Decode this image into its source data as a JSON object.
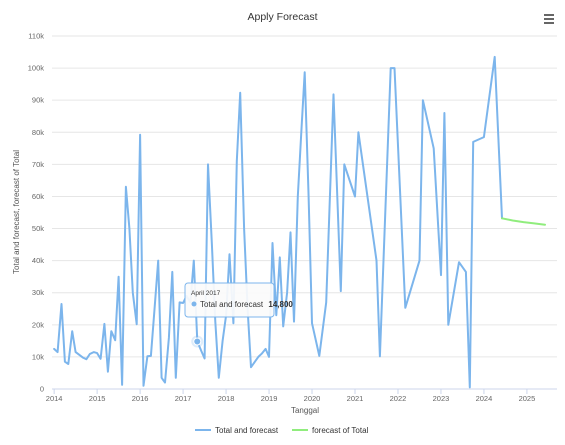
{
  "chart_data": {
    "type": "line",
    "title": "Apply Forecast",
    "xlabel": "Tanggal",
    "ylabel": "Total and forecast, forecast of Total",
    "xlim": [
      2013.95,
      2025.7
    ],
    "ylim": [
      0,
      110000
    ],
    "y_ticks": [
      0,
      10000,
      20000,
      30000,
      40000,
      50000,
      60000,
      70000,
      80000,
      90000,
      100000,
      110000
    ],
    "y_tick_labels": [
      "0",
      "10k",
      "20k",
      "30k",
      "40k",
      "50k",
      "60k",
      "70k",
      "80k",
      "90k",
      "100k",
      "110k"
    ],
    "x_ticks": [
      2014,
      2015,
      2016,
      2017,
      2018,
      2019,
      2020,
      2021,
      2022,
      2023,
      2024,
      2025
    ],
    "x_tick_labels": [
      "2014",
      "2015",
      "2016",
      "2017",
      "2018",
      "2019",
      "2020",
      "2021",
      "2022",
      "2023",
      "2024",
      "2025"
    ],
    "grid": "horizontal",
    "legend_position": "bottom-center",
    "series": [
      {
        "name": "Total and forecast",
        "color": "#7cb5ec",
        "points": [
          [
            2014.0,
            12500
          ],
          [
            2014.08,
            11500
          ],
          [
            2014.17,
            26500
          ],
          [
            2014.25,
            8500
          ],
          [
            2014.33,
            7800
          ],
          [
            2014.42,
            18000
          ],
          [
            2014.5,
            11500
          ],
          [
            2014.58,
            10700
          ],
          [
            2014.67,
            9800
          ],
          [
            2014.75,
            9300
          ],
          [
            2014.83,
            10900
          ],
          [
            2014.92,
            11500
          ],
          [
            2015.0,
            11200
          ],
          [
            2015.08,
            9400
          ],
          [
            2015.17,
            20300
          ],
          [
            2015.25,
            5400
          ],
          [
            2015.33,
            18000
          ],
          [
            2015.42,
            15200
          ],
          [
            2015.5,
            35000
          ],
          [
            2015.58,
            1300
          ],
          [
            2015.67,
            63000
          ],
          [
            2015.75,
            50000
          ],
          [
            2015.83,
            30000
          ],
          [
            2015.92,
            20200
          ],
          [
            2016.0,
            79200
          ],
          [
            2016.08,
            1000
          ],
          [
            2016.17,
            10200
          ],
          [
            2016.25,
            10300
          ],
          [
            2016.33,
            24000
          ],
          [
            2016.42,
            40000
          ],
          [
            2016.5,
            3500
          ],
          [
            2016.58,
            2000
          ],
          [
            2016.67,
            16000
          ],
          [
            2016.75,
            36500
          ],
          [
            2016.83,
            3500
          ],
          [
            2016.92,
            27000
          ],
          [
            2017.0,
            26800
          ],
          [
            2017.08,
            29000
          ],
          [
            2017.17,
            27000
          ],
          [
            2017.25,
            40000
          ],
          [
            2017.33,
            14800
          ],
          [
            2017.42,
            12000
          ],
          [
            2017.5,
            9500
          ],
          [
            2017.58,
            70000
          ],
          [
            2017.67,
            45000
          ],
          [
            2017.75,
            21000
          ],
          [
            2017.83,
            3500
          ],
          [
            2017.92,
            15000
          ],
          [
            2018.0,
            23000
          ],
          [
            2018.08,
            42000
          ],
          [
            2018.17,
            20500
          ],
          [
            2018.25,
            71000
          ],
          [
            2018.33,
            92300
          ],
          [
            2018.42,
            50000
          ],
          [
            2018.5,
            25000
          ],
          [
            2018.58,
            6800
          ],
          [
            2018.67,
            8500
          ],
          [
            2018.75,
            10000
          ],
          [
            2018.83,
            11000
          ],
          [
            2018.92,
            12500
          ],
          [
            2019.0,
            10000
          ],
          [
            2019.08,
            45500
          ],
          [
            2019.17,
            23000
          ],
          [
            2019.25,
            41000
          ],
          [
            2019.33,
            19500
          ],
          [
            2019.42,
            30000
          ],
          [
            2019.5,
            48800
          ],
          [
            2019.58,
            21000
          ],
          [
            2019.67,
            60000
          ],
          [
            2019.75,
            80000
          ],
          [
            2019.83,
            98700
          ],
          [
            2019.92,
            60000
          ],
          [
            2020.0,
            20500
          ],
          [
            2020.17,
            10300
          ],
          [
            2020.33,
            27000
          ],
          [
            2020.5,
            91800
          ],
          [
            2020.67,
            30500
          ],
          [
            2020.75,
            70000
          ],
          [
            2021.0,
            60000
          ],
          [
            2021.08,
            80000
          ],
          [
            2021.5,
            40000
          ],
          [
            2021.58,
            10200
          ],
          [
            2021.83,
            100000
          ],
          [
            2021.92,
            100000
          ],
          [
            2022.17,
            25300
          ],
          [
            2022.5,
            40000
          ],
          [
            2022.58,
            90000
          ],
          [
            2022.83,
            75000
          ],
          [
            2023.0,
            35500
          ],
          [
            2023.08,
            86000
          ],
          [
            2023.17,
            20000
          ],
          [
            2023.42,
            39500
          ],
          [
            2023.58,
            36500
          ],
          [
            2023.67,
            500
          ],
          [
            2023.75,
            77000
          ],
          [
            2024.0,
            78500
          ],
          [
            2024.25,
            103500
          ],
          [
            2024.42,
            53200
          ]
        ]
      },
      {
        "name": "forecast of Total",
        "color": "#90ed7d",
        "points": [
          [
            2024.42,
            53200
          ],
          [
            2024.67,
            52500
          ],
          [
            2024.92,
            52000
          ],
          [
            2025.17,
            51600
          ],
          [
            2025.42,
            51200
          ]
        ]
      }
    ],
    "tooltip": {
      "date": "April 2017",
      "series": "Total and forecast",
      "value": "14,800",
      "x": 2017.33,
      "y": 14800
    }
  }
}
